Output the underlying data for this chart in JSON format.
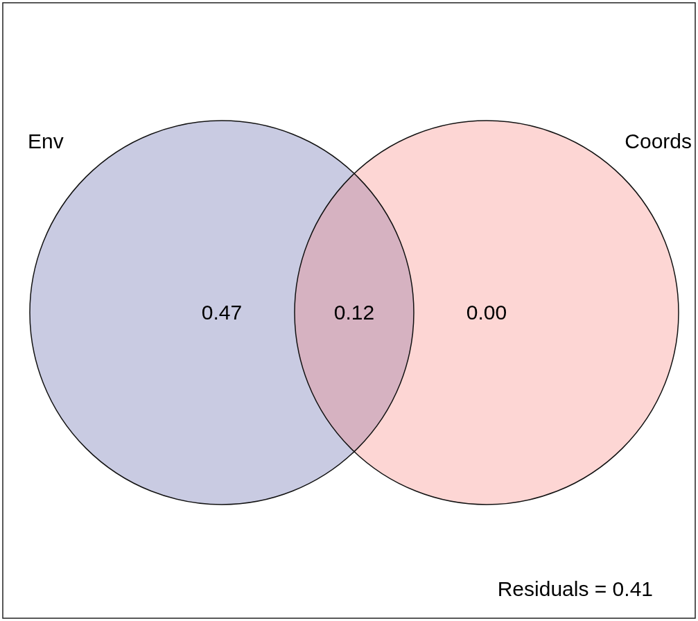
{
  "chart_data": {
    "type": "other",
    "categories": [
      "Env",
      null,
      "Coords"
    ],
    "values": [
      0.47,
      0.12,
      0.0
    ],
    "value_labels": [
      "0.47",
      "0.12",
      "0.00"
    ],
    "colors": [
      "#c9cbe2",
      "#d6b2c1",
      "#fdd6d4"
    ],
    "annotations": [
      "Residuals = 0.41"
    ]
  }
}
